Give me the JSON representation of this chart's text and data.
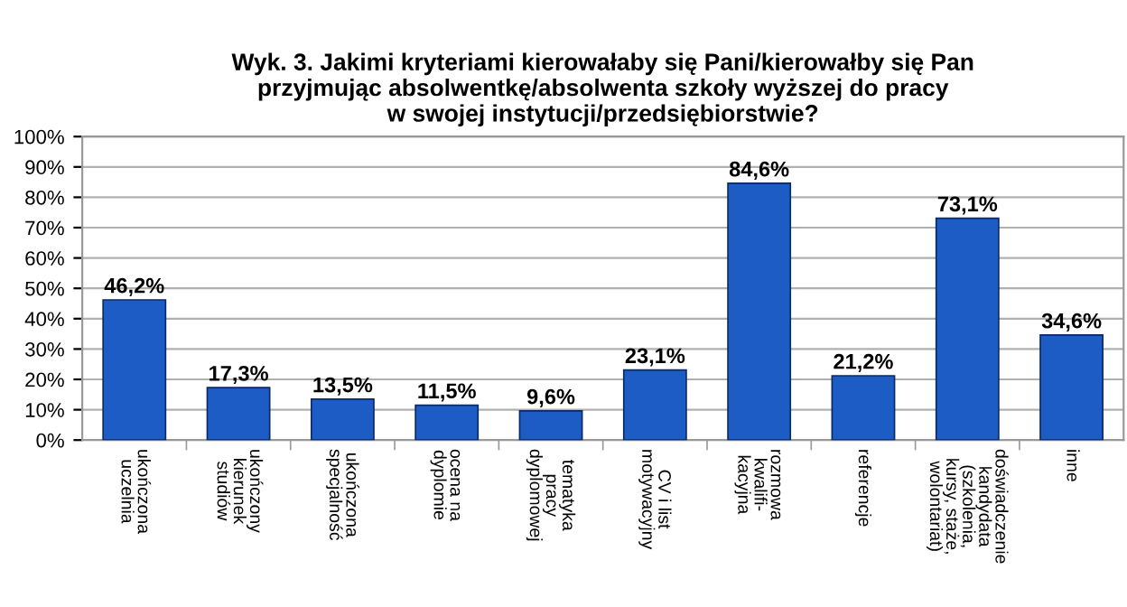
{
  "chart_data": {
    "type": "bar",
    "title": "Wyk. 3. Jakimi kryteriami kierowałaby się Pani/kierowałby się Pan\nprzyjmując absolwentkę/absolwenta szkoły wyższej do pracy\nw swojej instytucji/przedsiębiorstwie?",
    "categories": [
      "ukończona\nuczelnia",
      "ukończony\nkierunek\nstudiów",
      "ukończona\nspecjalność",
      "ocena na\ndyplomie",
      "tematyka\npracy\ndyplomowej",
      "CV i list\nmotywacyjny",
      "rozmowa\nkwalifi-\nkacyjna",
      "referencje",
      "doświadczenie\nkandydata\n(szkolenia,\nkursy, staże,\nwolontariat)",
      "inne"
    ],
    "values": [
      46.2,
      17.3,
      13.5,
      11.5,
      9.6,
      23.1,
      84.6,
      21.2,
      73.1,
      34.6
    ],
    "value_labels": [
      "46,2%",
      "17,3%",
      "13,5%",
      "11,5%",
      "9,6%",
      "23,1%",
      "84,6%",
      "21,2%",
      "73,1%",
      "34,6%"
    ],
    "color": "#1c5cc4",
    "ylim": [
      0,
      100
    ],
    "yticks": [
      {
        "value": 0,
        "label": "0%"
      },
      {
        "value": 10,
        "label": "10%"
      },
      {
        "value": 20,
        "label": "20%"
      },
      {
        "value": 30,
        "label": "30%"
      },
      {
        "value": 40,
        "label": "40%"
      },
      {
        "value": 50,
        "label": "50%"
      },
      {
        "value": 60,
        "label": "60%"
      },
      {
        "value": 70,
        "label": "70%"
      },
      {
        "value": 80,
        "label": "80%"
      },
      {
        "value": 90,
        "label": "90%"
      },
      {
        "value": 100,
        "label": "100%"
      }
    ],
    "grid": "y"
  }
}
